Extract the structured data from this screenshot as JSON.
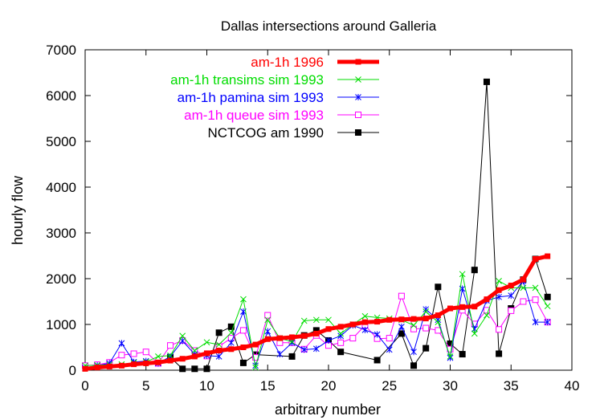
{
  "chart_data": {
    "type": "line",
    "title": "Dallas intersections around Galleria",
    "xlabel": "arbitrary number",
    "ylabel": "hourly flow",
    "xlim": [
      0,
      40
    ],
    "ylim": [
      0,
      7000
    ],
    "xticks": [
      0,
      5,
      10,
      15,
      20,
      25,
      30,
      35,
      40
    ],
    "yticks": [
      0,
      1000,
      2000,
      3000,
      4000,
      5000,
      6000,
      7000
    ],
    "grid": false,
    "legend_position": "top-right",
    "series": [
      {
        "name": "am-1h 1996",
        "color": "#ff0000",
        "marker": "filled-square",
        "line": "thick",
        "x": [
          0,
          1,
          2,
          3,
          4,
          5,
          6,
          7,
          8,
          9,
          10,
          11,
          12,
          13,
          14,
          15,
          16,
          17,
          18,
          19,
          20,
          21,
          22,
          23,
          24,
          25,
          26,
          27,
          28,
          29,
          30,
          31,
          32,
          33,
          34,
          35,
          36,
          37,
          38
        ],
        "y": [
          30,
          60,
          80,
          100,
          130,
          150,
          170,
          210,
          250,
          300,
          370,
          430,
          460,
          500,
          560,
          680,
          700,
          720,
          750,
          800,
          900,
          950,
          1000,
          1050,
          1060,
          1100,
          1110,
          1120,
          1130,
          1200,
          1350,
          1380,
          1390,
          1550,
          1750,
          1850,
          1980,
          2430,
          2490
        ]
      },
      {
        "name": "am-1h transims sim 1993",
        "color": "#00dd00",
        "marker": "x",
        "line": "thin",
        "x": [
          0,
          1,
          2,
          3,
          4,
          5,
          6,
          7,
          8,
          9,
          10,
          11,
          12,
          13,
          14,
          15,
          16,
          17,
          18,
          19,
          20,
          21,
          22,
          23,
          24,
          25,
          26,
          27,
          28,
          29,
          30,
          31,
          32,
          33,
          34,
          35,
          36,
          37,
          38
        ],
        "y": [
          100,
          110,
          120,
          130,
          160,
          180,
          300,
          320,
          750,
          430,
          610,
          560,
          820,
          1550,
          60,
          1100,
          700,
          620,
          1080,
          1100,
          1100,
          800,
          1000,
          1180,
          1150,
          1130,
          1100,
          980,
          1280,
          1050,
          300,
          2100,
          800,
          1200,
          1950,
          1800,
          1800,
          1800,
          1400
        ]
      },
      {
        "name": "am-1h pamina sim 1993",
        "color": "#0000ff",
        "marker": "asterisk",
        "line": "thin",
        "x": [
          0,
          1,
          2,
          3,
          4,
          5,
          6,
          7,
          8,
          9,
          10,
          11,
          12,
          13,
          14,
          15,
          16,
          17,
          18,
          19,
          20,
          21,
          22,
          23,
          24,
          25,
          26,
          27,
          28,
          29,
          30,
          31,
          32,
          33,
          34,
          35,
          36,
          37,
          38
        ],
        "y": [
          50,
          100,
          150,
          590,
          180,
          200,
          150,
          300,
          640,
          350,
          320,
          300,
          600,
          1280,
          100,
          850,
          350,
          600,
          450,
          470,
          650,
          750,
          980,
          880,
          780,
          450,
          950,
          400,
          1330,
          1100,
          270,
          1780,
          900,
          1520,
          1600,
          1630,
          1950,
          1050,
          1050
        ]
      },
      {
        "name": "am-1h queue sim 1993",
        "color": "#ff00ff",
        "marker": "open-square",
        "line": "thin",
        "x": [
          0,
          1,
          2,
          3,
          4,
          5,
          6,
          7,
          8,
          9,
          10,
          11,
          12,
          13,
          14,
          15,
          16,
          17,
          18,
          19,
          20,
          21,
          22,
          23,
          24,
          25,
          26,
          27,
          28,
          29,
          30,
          31,
          32,
          33,
          34,
          35,
          36,
          37,
          38
        ],
        "y": [
          100,
          120,
          170,
          330,
          360,
          400,
          150,
          540,
          650,
          430,
          310,
          520,
          700,
          870,
          280,
          1200,
          600,
          600,
          460,
          760,
          540,
          600,
          700,
          980,
          690,
          700,
          1620,
          900,
          920,
          870,
          460,
          1310,
          1010,
          1310,
          890,
          1300,
          1500,
          1540,
          1050
        ]
      },
      {
        "name": "NCTCOG am 1990",
        "color": "#000000",
        "marker": "filled-square",
        "line": "thin",
        "x": [
          7,
          8,
          9,
          10,
          11,
          12,
          13,
          14,
          17,
          18,
          19,
          20,
          21,
          24,
          26,
          27,
          28,
          29,
          30,
          31,
          32,
          33,
          34,
          35,
          36,
          37,
          38
        ],
        "y": [
          280,
          30,
          30,
          30,
          820,
          950,
          160,
          340,
          300,
          760,
          870,
          650,
          400,
          220,
          800,
          100,
          480,
          1820,
          580,
          350,
          2190,
          6300,
          360,
          1350,
          1980,
          2430,
          1600
        ]
      }
    ]
  }
}
